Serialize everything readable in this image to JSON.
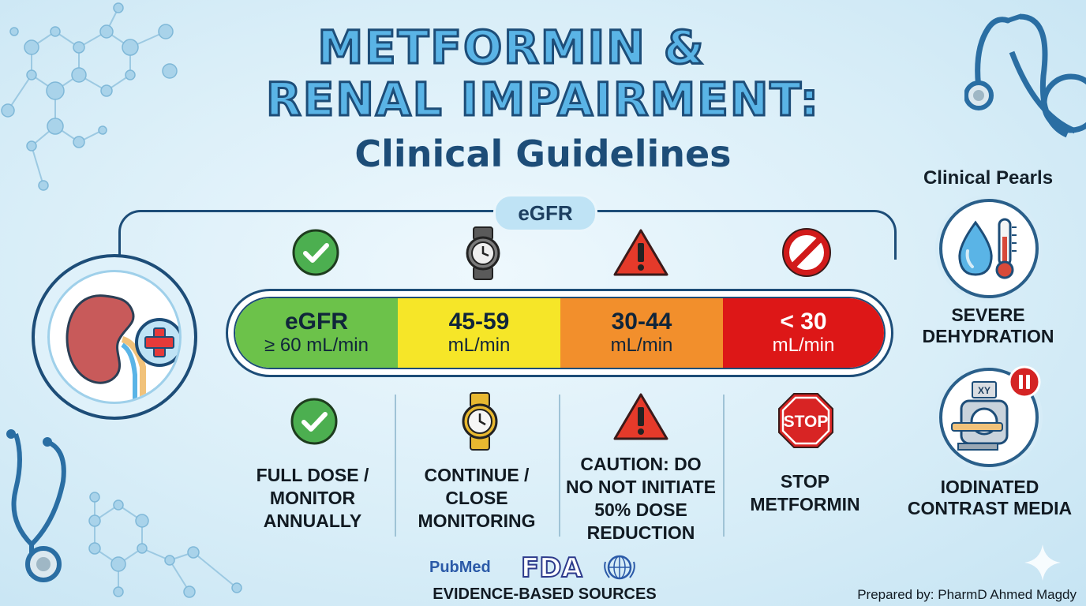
{
  "title": {
    "line1": "METFORMIN   &",
    "line2": "RENAL IMPAIRMENT:",
    "line3": "Clinical Guidelines"
  },
  "egfr_label": "eGFR",
  "stages": [
    {
      "range_line1": "eGFR",
      "range_line2": "≥ 60 mL/min",
      "color": "#6cc24a",
      "top_icon": "check-circle-icon",
      "bottom_icon": "check-circle-icon",
      "action": [
        "FULL DOSE /",
        "MONITOR",
        "ANNUALLY"
      ]
    },
    {
      "range_line1": "45-59",
      "range_line2": "mL/min",
      "color": "#f6e628",
      "top_icon": "watch-icon",
      "bottom_icon": "watch-icon",
      "action": [
        "CONTINUE /",
        "CLOSE",
        "MONITORING"
      ]
    },
    {
      "range_line1": "30-44",
      "range_line2": "mL/min",
      "color": "#f28f2c",
      "top_icon": "warning-triangle-icon",
      "bottom_icon": "warning-triangle-icon",
      "action": [
        "CAUTION: DO",
        "NO NOT INITIATE",
        "50% DOSE",
        "REDUCTION"
      ]
    },
    {
      "range_line1": "< 30",
      "range_line2": "mL/min",
      "color": "#dd1717",
      "top_icon": "prohibited-icon",
      "bottom_icon": "stop-sign-icon",
      "bottom_icon_text": "STOP",
      "action": [
        "STOP",
        "METFORMIN"
      ]
    }
  ],
  "clinical_pearls": {
    "title": "Clinical Pearls",
    "items": [
      {
        "icon": "water-drop-thermometer-icon",
        "label": [
          "SEVERE",
          "DEHYDRATION"
        ]
      },
      {
        "icon": "ct-scanner-pause-icon",
        "icon_text": "XY",
        "label": [
          "IODINATED",
          "CONTRAST MEDIA"
        ]
      }
    ]
  },
  "sources": {
    "logos": [
      "PubMed",
      "FDA",
      "WHO"
    ],
    "label": "EVIDENCE-BASED SOURCES"
  },
  "prepared_by": "Prepared by: PharmD Ahmed Magdy",
  "colors": {
    "navy": "#1d4d78",
    "light_blue": "#5ab4e6",
    "green": "#6cc24a",
    "yellow": "#f6e628",
    "orange": "#f28f2c",
    "red": "#dd1717"
  }
}
